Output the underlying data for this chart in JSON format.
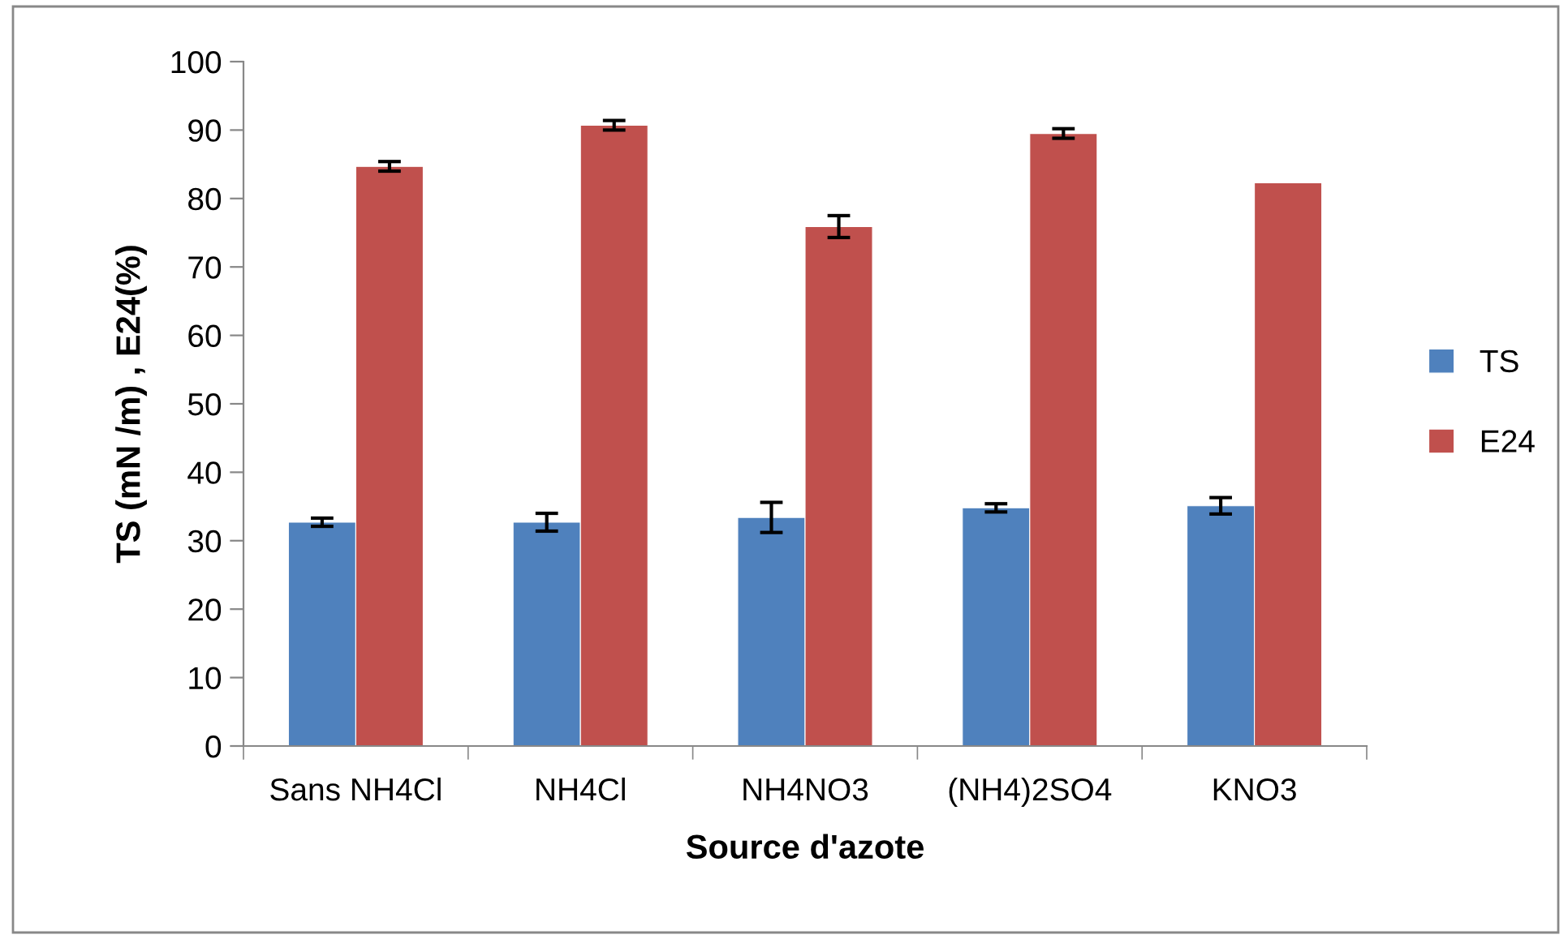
{
  "chart_data": {
    "type": "bar",
    "xlabel": "Source d'azote",
    "ylabel": "TS (mN /m) , E24(%)",
    "categories": [
      "Sans NH4Cl",
      "NH4Cl",
      "NH4NO3",
      "(NH4)2SO4",
      "KNO3"
    ],
    "series": [
      {
        "name": "TS",
        "color": "#4f81bd",
        "values": [
          32.7,
          32.7,
          33.4,
          34.8,
          35.1
        ],
        "errors": [
          0.6,
          1.3,
          2.2,
          0.6,
          1.2
        ]
      },
      {
        "name": "E24",
        "color": "#c0504d",
        "values": [
          84.7,
          90.7,
          75.9,
          89.5,
          82.3
        ],
        "errors": [
          0.7,
          0.7,
          1.6,
          0.7,
          null
        ]
      }
    ],
    "ylim": [
      0,
      100
    ],
    "yticks": [
      0,
      10,
      20,
      30,
      40,
      50,
      60,
      70,
      80,
      90,
      100
    ],
    "grid": false,
    "legend": "right"
  }
}
